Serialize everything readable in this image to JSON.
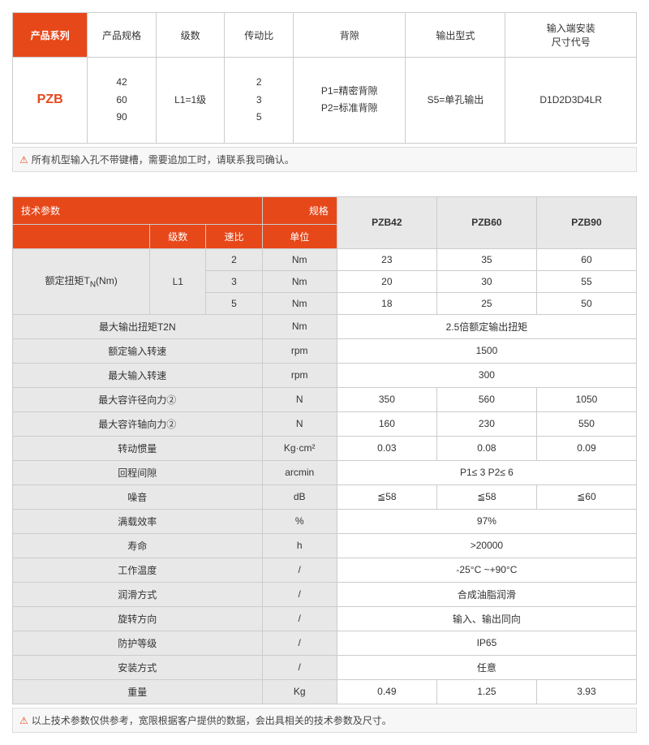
{
  "colors": {
    "orange": "#e7481a",
    "gray": "#e8e8e8",
    "border": "#ccc"
  },
  "table1": {
    "headers": [
      "产品系列",
      "产品规格",
      "级数",
      "传动比",
      "背隙",
      "输出型式",
      "输入端安装\n尺寸代号"
    ],
    "row": {
      "series": "PZB",
      "specs": "42\n60\n90",
      "stages": "L1=1级",
      "ratio": "2\n3\n5",
      "backlash": "P1=精密背隙\nP2=标准背隙",
      "output": "S5=单孔输出",
      "input": "D1D2D3D4LR"
    },
    "note": "所有机型输入孔不带键槽，需要追加工时，请联系我司确认。"
  },
  "table2": {
    "title_left": "技术参数",
    "title_right": "规格",
    "sub_headers": [
      "级数",
      "速比",
      "单位"
    ],
    "models": [
      "PZB42",
      "PZB60",
      "PZB90"
    ],
    "torque_label": "额定扭矩T",
    "torque_sub": "N",
    "torque_suffix": "(Nm)",
    "torque_stage": "L1",
    "torque_rows": [
      {
        "ratio": "2",
        "unit": "Nm",
        "v": [
          "23",
          "35",
          "60"
        ]
      },
      {
        "ratio": "3",
        "unit": "Nm",
        "v": [
          "20",
          "30",
          "55"
        ]
      },
      {
        "ratio": "5",
        "unit": "Nm",
        "v": [
          "18",
          "25",
          "50"
        ]
      }
    ],
    "rows": [
      {
        "p": "最大输出扭矩T2N",
        "u": "Nm",
        "span": "2.5倍额定输出扭矩"
      },
      {
        "p": "额定输入转速",
        "u": "rpm",
        "span": "1500"
      },
      {
        "p": "最大输入转速",
        "u": "rpm",
        "span": "300"
      },
      {
        "p": "最大容许径向力②",
        "u": "N",
        "v": [
          "350",
          "560",
          "1050"
        ]
      },
      {
        "p": "最大容许轴向力②",
        "u": "N",
        "v": [
          "160",
          "230",
          "550"
        ]
      },
      {
        "p": "转动惯量",
        "u": "Kg·cm²",
        "v": [
          "0.03",
          "0.08",
          "0.09"
        ]
      },
      {
        "p": "回程间隙",
        "u": "arcmin",
        "span": "P1≤ 3      P2≤ 6"
      },
      {
        "p": "噪音",
        "u": "dB",
        "v": [
          "≦58",
          "≦58",
          "≦60"
        ]
      },
      {
        "p": "满载效率",
        "u": "%",
        "span": "97%"
      },
      {
        "p": "寿命",
        "u": "h",
        "span": ">20000"
      },
      {
        "p": "工作温度",
        "u": "/",
        "span": "-25°C ~+90°C"
      },
      {
        "p": "润滑方式",
        "u": "/",
        "span": "合成油脂润滑"
      },
      {
        "p": "旋转方向",
        "u": "/",
        "span": "输入、输出同向"
      },
      {
        "p": "防护等级",
        "u": "/",
        "span": "IP65"
      },
      {
        "p": "安装方式",
        "u": "/",
        "span": "任意"
      },
      {
        "p": "重量",
        "u": "Kg",
        "v": [
          "0.49",
          "1.25",
          "3.93"
        ]
      }
    ],
    "note": "以上技术参数仅供参考，宽限根据客户提供的数据，会出具相关的技术参数及尺寸。"
  }
}
